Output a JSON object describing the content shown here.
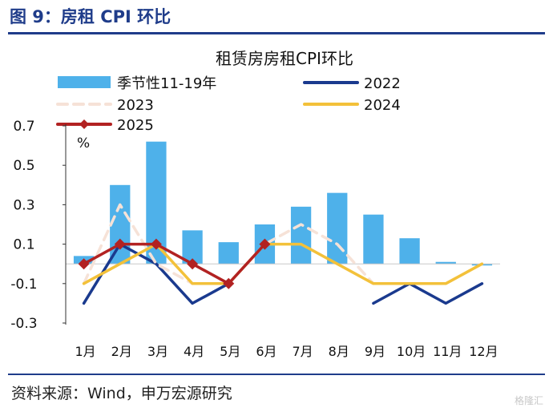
{
  "figure_title": "图 9：房租 CPI 环比",
  "source": "资料来源：Wind，申万宏源研究",
  "watermark": "格隆汇",
  "chart_data": {
    "type": "bar+line",
    "title": "租赁房房租CPI环比",
    "unit_label": "%",
    "categories": [
      "1月",
      "2月",
      "3月",
      "4月",
      "5月",
      "6月",
      "7月",
      "8月",
      "9月",
      "10月",
      "11月",
      "12月"
    ],
    "yticks": [
      "0.7",
      "0.5",
      "0.3",
      "0.1",
      "-0.1",
      "-0.3"
    ],
    "ylim": [
      -0.3,
      0.7
    ],
    "grid": false,
    "legend_position": "top",
    "bars": {
      "name": "季节性11-19年",
      "color": "#4eb1ea",
      "values": [
        0.04,
        0.4,
        0.62,
        0.17,
        0.11,
        0.2,
        0.29,
        0.36,
        0.25,
        0.13,
        0.01,
        0.0
      ]
    },
    "lines": [
      {
        "name": "2022",
        "color": "#1a3a8e",
        "dashed": false,
        "marker": false,
        "values": [
          -0.2,
          0.1,
          0.0,
          -0.2,
          -0.1,
          null,
          null,
          null,
          -0.2,
          -0.1,
          -0.2,
          -0.1
        ]
      },
      {
        "name": "2023",
        "color": "#f6e2d7",
        "dashed": true,
        "marker": false,
        "values": [
          -0.1,
          0.3,
          0.0,
          -0.1,
          -0.1,
          0.1,
          0.2,
          0.1,
          -0.1,
          -0.1,
          -0.1,
          0.0
        ]
      },
      {
        "name": "2024",
        "color": "#f3c13a",
        "dashed": false,
        "marker": false,
        "values": [
          -0.1,
          0.0,
          0.1,
          -0.1,
          -0.1,
          0.1,
          0.1,
          0.0,
          -0.1,
          -0.1,
          -0.1,
          0.0
        ]
      },
      {
        "name": "2025",
        "color": "#b22222",
        "dashed": false,
        "marker": true,
        "values": [
          0.0,
          0.1,
          0.1,
          0.0,
          -0.1,
          0.1,
          null,
          null,
          null,
          null,
          null,
          null
        ]
      }
    ]
  }
}
